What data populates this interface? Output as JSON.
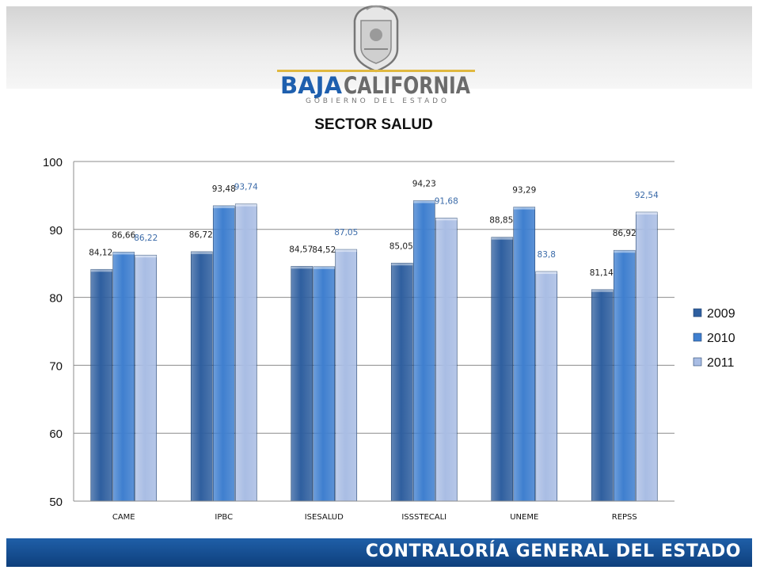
{
  "branding": {
    "logo_main_left": "BAJA",
    "logo_main_right": "CALIFORNIA",
    "logo_sub": "GOBIERNO DEL ESTADO",
    "footer": "CONTRALORÍA GENERAL DEL ESTADO"
  },
  "colors": {
    "series_2009": "#2f5f9f",
    "series_2010": "#3f7fcf",
    "series_2011": "#a9bde4",
    "label_2009_2010": "#1a1a1a",
    "label_2011": "#3a6aa8",
    "footer_band": "#1a5599"
  },
  "chart_data": {
    "type": "bar",
    "title": "SECTOR SALUD",
    "categories": [
      "CAME",
      "IPBC",
      "ISESALUD",
      "ISSSTECALI",
      "UNEME",
      "REPSS"
    ],
    "series": [
      {
        "name": "2009",
        "values": [
          84.12,
          86.72,
          84.57,
          85.05,
          88.85,
          81.14
        ],
        "labels": [
          "84,12",
          "86,72",
          "84,57",
          "85,05",
          "88,85",
          "81,14"
        ]
      },
      {
        "name": "2010",
        "values": [
          86.66,
          93.48,
          84.52,
          94.23,
          93.29,
          86.92
        ],
        "labels": [
          "86,66",
          "93,48",
          "84,52",
          "94,23",
          "93,29",
          "86,92"
        ]
      },
      {
        "name": "2011",
        "values": [
          86.22,
          93.74,
          87.05,
          91.68,
          83.8,
          92.54
        ],
        "labels": [
          "86,22",
          "93,74",
          "87,05",
          "91,68",
          "83,8",
          "92,54"
        ]
      }
    ],
    "ylim": [
      50,
      100
    ],
    "yticks": [
      50,
      60,
      70,
      80,
      90,
      100
    ],
    "ytick_labels": [
      "50",
      "60",
      "70",
      "80",
      "90",
      "100"
    ],
    "grid": true,
    "legend": "right"
  }
}
